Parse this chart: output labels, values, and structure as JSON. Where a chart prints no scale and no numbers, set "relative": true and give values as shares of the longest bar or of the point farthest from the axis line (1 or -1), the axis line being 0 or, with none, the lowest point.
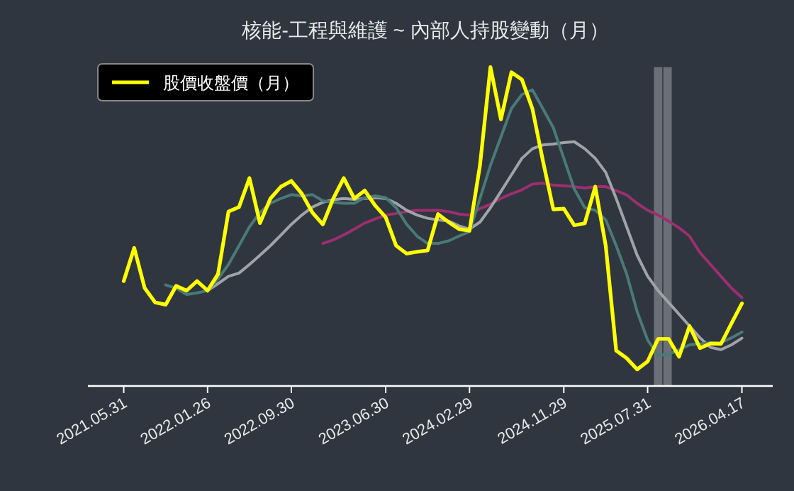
{
  "chart_data": {
    "type": "line",
    "title": "核能-工程與維護 ~ 內部人持股變動（月）",
    "relative": true,
    "legend": "top left",
    "tick_labels": "x",
    "categories": [
      "2021.05.31",
      null,
      null,
      null,
      null,
      null,
      null,
      null,
      "2022.01.26",
      null,
      null,
      null,
      null,
      null,
      null,
      null,
      "2022.09.30",
      null,
      null,
      null,
      null,
      null,
      null,
      null,
      null,
      "2023.06.30",
      null,
      null,
      null,
      null,
      null,
      null,
      null,
      "2024.02.29",
      null,
      null,
      null,
      null,
      null,
      null,
      null,
      null,
      "2024.11.29",
      null,
      null,
      null,
      null,
      null,
      null,
      null,
      "2025.07.31",
      null,
      null,
      null,
      null,
      null,
      null,
      null,
      null,
      "2026.04.17"
    ],
    "series": [
      {
        "color": "#9c2f6e",
        "values": [
          null,
          null,
          null,
          null,
          null,
          null,
          null,
          null,
          null,
          null,
          null,
          null,
          null,
          null,
          null,
          null,
          null,
          null,
          null,
          0.447,
          0.458,
          0.474,
          0.492,
          0.511,
          0.524,
          0.536,
          0.541,
          0.547,
          0.551,
          0.551,
          0.551,
          0.547,
          0.539,
          0.536,
          0.556,
          0.57,
          0.588,
          0.603,
          0.615,
          0.633,
          0.636,
          0.63,
          0.628,
          0.625,
          0.621,
          0.625,
          0.625,
          0.613,
          0.599,
          0.573,
          0.551,
          0.536,
          0.517,
          0.496,
          0.47,
          0.418,
          0.381,
          0.344,
          0.307,
          0.277
        ]
      },
      {
        "color": "#a0a3a8",
        "values": [
          null,
          null,
          null,
          null,
          null,
          null,
          null,
          null,
          0.299,
          0.321,
          0.344,
          0.354,
          0.381,
          0.41,
          0.44,
          0.473,
          0.507,
          0.536,
          0.561,
          0.576,
          0.584,
          0.588,
          0.585,
          0.588,
          0.591,
          0.588,
          0.573,
          0.551,
          0.536,
          0.526,
          0.521,
          0.517,
          0.502,
          0.492,
          0.514,
          0.559,
          0.61,
          0.662,
          0.714,
          0.744,
          0.756,
          0.759,
          0.763,
          0.766,
          0.744,
          0.714,
          0.67,
          0.588,
          0.499,
          0.41,
          0.344,
          0.299,
          0.262,
          0.225,
          0.188,
          0.151,
          0.121,
          0.114,
          0.129,
          0.15
        ]
      },
      {
        "color": "#4a7a78",
        "values": [
          null,
          null,
          null,
          null,
          0.317,
          0.307,
          0.287,
          0.292,
          0.299,
          0.336,
          0.381,
          0.44,
          0.499,
          0.544,
          0.573,
          0.588,
          0.6,
          0.596,
          0.6,
          0.581,
          0.576,
          0.573,
          0.573,
          0.591,
          0.596,
          0.591,
          0.559,
          0.507,
          0.47,
          0.447,
          0.447,
          0.455,
          0.47,
          0.484,
          0.588,
          0.692,
          0.781,
          0.87,
          0.914,
          0.929,
          0.87,
          0.81,
          0.714,
          0.618,
          0.559,
          0.551,
          0.521,
          0.44,
          0.351,
          0.233,
          0.144,
          0.096,
          0.099,
          0.114,
          0.129,
          0.132,
          0.136,
          0.136,
          0.151,
          0.169
        ]
      },
      {
        "name": "股價收盤價（月）",
        "color": "#ffff00",
        "values": [
          0.329,
          0.433,
          0.307,
          0.262,
          0.255,
          0.314,
          0.299,
          0.329,
          0.299,
          0.351,
          0.547,
          0.561,
          0.652,
          0.511,
          0.588,
          0.625,
          0.643,
          0.603,
          0.544,
          0.507,
          0.588,
          0.652,
          0.588,
          0.613,
          0.566,
          0.529,
          0.44,
          0.415,
          0.421,
          0.425,
          0.539,
          0.514,
          0.492,
          0.487,
          0.692,
          1.0,
          0.836,
          0.984,
          0.961,
          0.87,
          0.707,
          0.554,
          0.556,
          0.504,
          0.51,
          0.625,
          0.44,
          0.111,
          0.087,
          0.052,
          0.077,
          0.148,
          0.148,
          0.092,
          0.188,
          0.119,
          0.133,
          0.132,
          0.196,
          0.259
        ]
      }
    ]
  }
}
